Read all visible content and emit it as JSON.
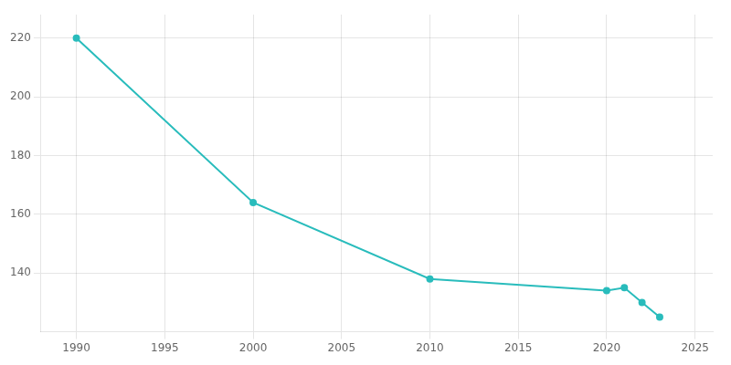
{
  "chart_data": {
    "type": "line",
    "x": [
      1990,
      2000,
      2010,
      2020,
      2021,
      2022,
      2023
    ],
    "values": [
      220,
      164,
      138,
      134,
      135,
      130,
      125
    ],
    "color": "#29BCBC",
    "marker": "circle",
    "xlim": [
      1988,
      2026
    ],
    "ylim": [
      120,
      228
    ],
    "xticks": [
      1990,
      1995,
      2000,
      2005,
      2010,
      2015,
      2020,
      2025
    ],
    "yticks": [
      140,
      160,
      180,
      200,
      220
    ],
    "grid": true
  }
}
